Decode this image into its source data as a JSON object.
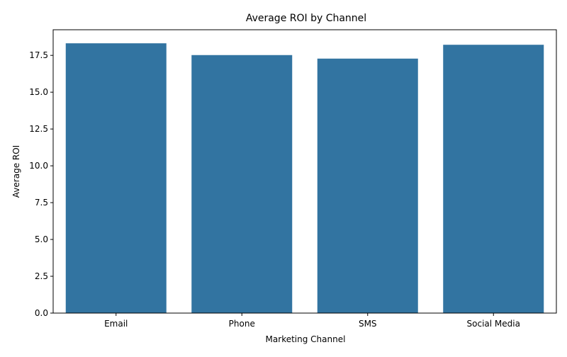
{
  "chart_data": {
    "type": "bar",
    "title": "Average ROI by Channel",
    "xlabel": "Marketing Channel",
    "ylabel": "Average ROI",
    "categories": [
      "Email",
      "Phone",
      "SMS",
      "Social Media"
    ],
    "values": [
      18.32,
      17.52,
      17.28,
      18.22
    ],
    "ylim": [
      0,
      19.24
    ],
    "yticks": [
      0.0,
      2.5,
      5.0,
      7.5,
      10.0,
      12.5,
      15.0,
      17.5
    ],
    "ytick_labels": [
      "0.0",
      "2.5",
      "5.0",
      "7.5",
      "10.0",
      "12.5",
      "15.0",
      "17.5"
    ],
    "bar_color": "#3274a1",
    "grid": false,
    "legend": "none"
  }
}
